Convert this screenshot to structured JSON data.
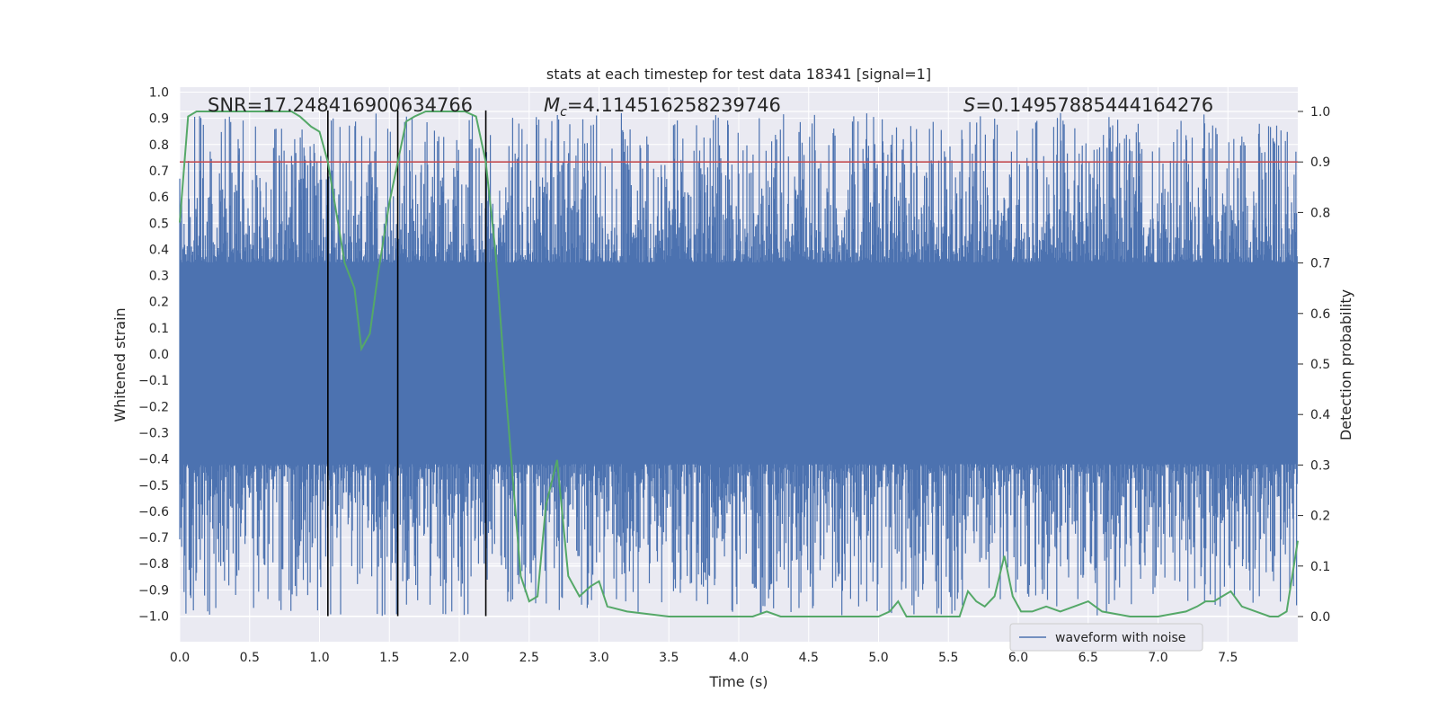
{
  "chart_data": {
    "type": "line",
    "title": "stats at each timestep for test data 18341 [signal=1]",
    "xlabel": "Time (s)",
    "ylabel_left": "Whitened strain",
    "ylabel_right": "Detection probability",
    "xlim": [
      0.0,
      8.0
    ],
    "ylim_left": [
      -1.09,
      1.03
    ],
    "ylim_right": [
      -0.05,
      1.04
    ],
    "x_ticks": [
      "0.0",
      "0.5",
      "1.0",
      "1.5",
      "2.0",
      "2.5",
      "3.0",
      "3.5",
      "4.0",
      "4.5",
      "5.0",
      "5.5",
      "6.0",
      "6.5",
      "7.0",
      "7.5"
    ],
    "y_left_ticks": [
      "1.0",
      "0.9",
      "0.8",
      "0.7",
      "0.6",
      "0.5",
      "0.4",
      "0.3",
      "0.2",
      "0.1",
      "0.0",
      "-0.1",
      "-0.2",
      "-0.3",
      "-0.4",
      "-0.5",
      "-0.6",
      "-0.7",
      "-0.8",
      "-0.9",
      "-1.0"
    ],
    "y_right_ticks": [
      "1.0",
      "0.9",
      "0.8",
      "0.7",
      "0.6",
      "0.5",
      "0.4",
      "0.3",
      "0.2",
      "0.1",
      "0.0"
    ],
    "grid": true,
    "annotations": {
      "snr_prefix": "SNR=",
      "snr_value": "17.248416900634766",
      "mc_symbol": "M",
      "mc_subscript": "c",
      "mc_value": "=4.114516258239746",
      "s_symbol": "S",
      "s_value": "=0.14957885444164276"
    },
    "threshold": {
      "axis": "right",
      "value": 0.9,
      "color": "#c44e52"
    },
    "vertical_markers": [
      1.06,
      1.56,
      2.19
    ],
    "vertical_marker_range": [
      -1.0,
      0.93
    ],
    "series": [
      {
        "name": "waveform with noise",
        "axis": "left",
        "color": "#4c72b0",
        "description_envelope": {
          "core_min": -0.42,
          "core_max": 0.35,
          "peak_max": 0.92,
          "peak_min": -1.0
        }
      },
      {
        "name": "detection probability",
        "axis": "right",
        "color": "#55a868",
        "x": [
          0.0,
          0.06,
          0.12,
          0.2,
          0.4,
          0.6,
          0.8,
          0.86,
          0.94,
          1.0,
          1.06,
          1.12,
          1.18,
          1.25,
          1.3,
          1.36,
          1.42,
          1.5,
          1.56,
          1.62,
          1.68,
          1.76,
          1.9,
          2.04,
          2.12,
          2.19,
          2.26,
          2.34,
          2.44,
          2.5,
          2.56,
          2.62,
          2.7,
          2.78,
          2.86,
          2.94,
          3.0,
          3.06,
          3.2,
          3.5,
          3.8,
          4.0,
          4.1,
          4.2,
          4.3,
          4.5,
          4.7,
          5.0,
          5.08,
          5.14,
          5.2,
          5.28,
          5.36,
          5.46,
          5.58,
          5.64,
          5.7,
          5.76,
          5.83,
          5.9,
          5.96,
          6.02,
          6.1,
          6.2,
          6.3,
          6.4,
          6.5,
          6.6,
          6.8,
          7.0,
          7.2,
          7.28,
          7.34,
          7.4,
          7.46,
          7.52,
          7.6,
          7.7,
          7.8,
          7.86,
          7.92,
          8.0
        ],
        "values": [
          0.78,
          0.99,
          1.0,
          1.0,
          1.0,
          1.0,
          1.0,
          0.99,
          0.97,
          0.96,
          0.9,
          0.8,
          0.7,
          0.65,
          0.53,
          0.56,
          0.68,
          0.82,
          0.9,
          0.98,
          0.99,
          1.0,
          1.0,
          1.0,
          0.99,
          0.9,
          0.72,
          0.42,
          0.08,
          0.03,
          0.04,
          0.22,
          0.31,
          0.08,
          0.04,
          0.06,
          0.07,
          0.02,
          0.01,
          0.0,
          0.0,
          0.0,
          0.0,
          0.01,
          0.0,
          0.0,
          0.0,
          0.0,
          0.01,
          0.03,
          0.0,
          0.0,
          0.0,
          0.0,
          0.0,
          0.05,
          0.03,
          0.02,
          0.04,
          0.12,
          0.04,
          0.01,
          0.01,
          0.02,
          0.01,
          0.02,
          0.03,
          0.01,
          0.0,
          0.0,
          0.01,
          0.02,
          0.03,
          0.03,
          0.04,
          0.05,
          0.02,
          0.01,
          0.0,
          0.0,
          0.01,
          0.15
        ]
      }
    ],
    "legend": {
      "placement": "bottom-right",
      "entries": [
        "waveform with noise"
      ]
    }
  }
}
